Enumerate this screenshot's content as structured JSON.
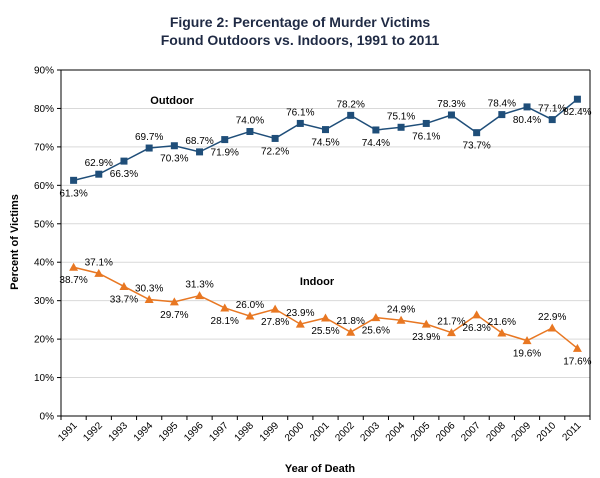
{
  "chart_data": {
    "type": "line",
    "title_line1": "Figure 2: Percentage of Murder Victims",
    "title_line2": "Found Outdoors vs. Indoors, 1991 to 2011",
    "xlabel": "Year of Death",
    "ylabel": "Percent of Victims",
    "ylim": [
      0,
      90
    ],
    "yticks": [
      "0%",
      "10%",
      "20%",
      "30%",
      "40%",
      "50%",
      "60%",
      "70%",
      "80%",
      "90%"
    ],
    "categories": [
      "1991",
      "1992",
      "1993",
      "1994",
      "1995",
      "1996",
      "1997",
      "1998",
      "1999",
      "2000",
      "2001",
      "2002",
      "2003",
      "2004",
      "2005",
      "2006",
      "2007",
      "2008",
      "2009",
      "2010",
      "2011"
    ],
    "grid": "horizontal",
    "series": [
      {
        "name": "Outdoor",
        "color": "#1f4e79",
        "marker": "square",
        "values": [
          61.3,
          62.9,
          66.3,
          69.7,
          70.3,
          68.7,
          71.9,
          74.0,
          72.2,
          76.1,
          74.5,
          78.2,
          74.4,
          75.1,
          76.1,
          78.3,
          73.7,
          78.4,
          80.4,
          77.1,
          82.4
        ],
        "labels": [
          "61.3%",
          "62.9%",
          "66.3%",
          "69.7%",
          "70.3%",
          "68.7%",
          "71.9%",
          "74.0%",
          "72.2%",
          "76.1%",
          "74.5%",
          "78.2%",
          "74.4%",
          "75.1%",
          "76.1%",
          "78.3%",
          "73.7%",
          "78.4%",
          "80.4%",
          "77.1%",
          "82.4%"
        ]
      },
      {
        "name": "Indoor",
        "color": "#e87722",
        "marker": "triangle",
        "values": [
          38.7,
          37.1,
          33.7,
          30.3,
          29.7,
          31.3,
          28.1,
          26.0,
          27.8,
          23.9,
          25.5,
          21.8,
          25.6,
          24.9,
          23.9,
          21.7,
          26.3,
          21.6,
          19.6,
          22.9,
          17.6
        ],
        "labels": [
          "38.7%",
          "37.1%",
          "33.7%",
          "30.3%",
          "29.7%",
          "31.3%",
          "28.1%",
          "26.0%",
          "27.8%",
          "23.9%",
          "25.5%",
          "21.8%",
          "25.6%",
          "24.9%",
          "23.9%",
          "21.7%",
          "26.3%",
          "21.6%",
          "19.6%",
          "22.9%",
          "17.6%"
        ]
      }
    ]
  }
}
